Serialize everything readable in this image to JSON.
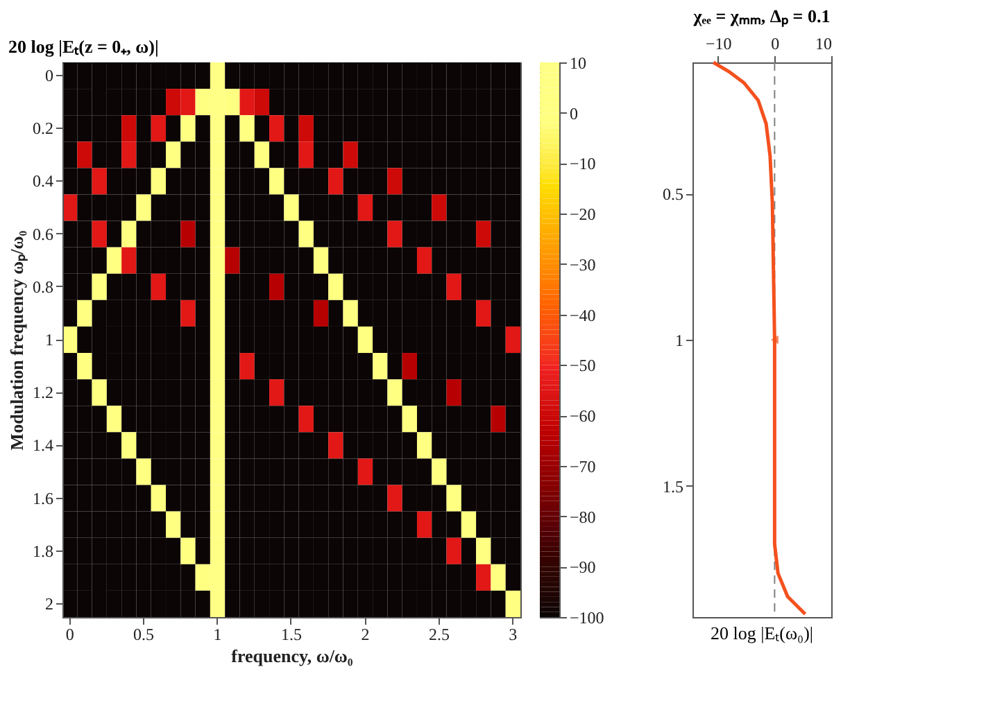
{
  "chart_data": [
    {
      "type": "heatmap",
      "title": "20 log |Eₜ(z = 0₊, ω)|",
      "xlabel": "frequency, ω/ω₀",
      "ylabel": "Modulation frequency ωₚ/ω₀",
      "categories": [
        "0",
        null,
        null,
        null,
        null,
        "0.5",
        null,
        null,
        null,
        null,
        "1",
        null,
        null,
        null,
        null,
        "1.5",
        null,
        null,
        null,
        null,
        "2",
        null,
        null,
        null,
        null,
        "2.5",
        null,
        null,
        null,
        null,
        "3"
      ],
      "y_categories": [
        "0",
        null,
        "0.2",
        null,
        "0.4",
        null,
        "0.6",
        null,
        "0.8",
        null,
        "1",
        null,
        "1.2",
        null,
        "1.4",
        null,
        "1.6",
        null,
        "1.8",
        null,
        "2"
      ],
      "cells": [
        [
          -100,
          -100,
          -100,
          -100,
          -100,
          -100,
          -100,
          -100,
          -100,
          -100,
          10,
          -100,
          -100,
          -100,
          -100,
          -100,
          -100,
          -100,
          -100,
          -100,
          -100,
          -100,
          -100,
          -100,
          -100,
          -100,
          -100,
          -100,
          -100,
          -100,
          -100
        ],
        [
          -100,
          -100,
          -100,
          -100,
          -100,
          -100,
          -100,
          -60,
          -55,
          0,
          10,
          0,
          -55,
          -60,
          -100,
          -100,
          -100,
          -100,
          -100,
          -100,
          -100,
          -100,
          -100,
          -100,
          -100,
          -100,
          -100,
          -100,
          -100,
          -100,
          -100
        ],
        [
          -100,
          -100,
          -100,
          -100,
          -60,
          -100,
          -55,
          -100,
          0,
          -100,
          10,
          -100,
          0,
          -100,
          -55,
          -100,
          -60,
          -100,
          -100,
          -100,
          -100,
          -100,
          -100,
          -100,
          -100,
          -100,
          -100,
          -100,
          -100,
          -100,
          -100
        ],
        [
          -100,
          -60,
          -100,
          -100,
          -55,
          -100,
          -100,
          0,
          -100,
          -100,
          10,
          -100,
          -100,
          0,
          -100,
          -100,
          -55,
          -100,
          -100,
          -60,
          -100,
          -100,
          -100,
          -100,
          -100,
          -100,
          -100,
          -100,
          -100,
          -100,
          -100
        ],
        [
          -100,
          -100,
          -55,
          -100,
          -100,
          -100,
          0,
          -100,
          -100,
          -100,
          10,
          -100,
          -100,
          -100,
          0,
          -100,
          -100,
          -100,
          -55,
          -100,
          -100,
          -100,
          -60,
          -100,
          -100,
          -100,
          -100,
          -100,
          -100,
          -100,
          -100
        ],
        [
          -55,
          -100,
          -100,
          -100,
          -100,
          0,
          -100,
          -100,
          -100,
          -100,
          10,
          -100,
          -100,
          -100,
          -100,
          0,
          -100,
          -100,
          -100,
          -100,
          -55,
          -100,
          -100,
          -100,
          -100,
          -60,
          -100,
          -100,
          -100,
          -100,
          -100
        ],
        [
          -100,
          -100,
          -55,
          -100,
          0,
          -100,
          -100,
          -100,
          -65,
          -100,
          10,
          -100,
          -100,
          -100,
          -100,
          -100,
          0,
          -100,
          -100,
          -100,
          -100,
          -100,
          -55,
          -100,
          -100,
          -100,
          -100,
          -100,
          -60,
          -100,
          -100
        ],
        [
          -100,
          -100,
          -100,
          0,
          -55,
          -100,
          -100,
          -100,
          -100,
          -100,
          10,
          -65,
          -100,
          -100,
          -100,
          -100,
          -100,
          0,
          -100,
          -100,
          -100,
          -100,
          -100,
          -100,
          -55,
          -100,
          -100,
          -100,
          -100,
          -100,
          -100
        ],
        [
          -100,
          -100,
          0,
          -100,
          -100,
          -100,
          -55,
          -100,
          -100,
          -100,
          10,
          -100,
          -100,
          -100,
          -65,
          -100,
          -100,
          -100,
          0,
          -100,
          -100,
          -100,
          -100,
          -100,
          -100,
          -100,
          -55,
          -100,
          -100,
          -100,
          -100
        ],
        [
          -100,
          0,
          -100,
          -100,
          -100,
          -100,
          -100,
          -100,
          -55,
          -100,
          10,
          -100,
          -100,
          -100,
          -100,
          -100,
          -100,
          -65,
          -100,
          0,
          -100,
          -100,
          -100,
          -100,
          -100,
          -100,
          -100,
          -100,
          -55,
          -100,
          -100
        ],
        [
          0,
          -100,
          -100,
          -100,
          -100,
          -100,
          -100,
          -100,
          -100,
          -100,
          10,
          -100,
          -100,
          -100,
          -100,
          -100,
          -100,
          -100,
          -100,
          -100,
          0,
          -100,
          -100,
          -100,
          -100,
          -100,
          -100,
          -100,
          -100,
          -100,
          -55
        ],
        [
          -100,
          0,
          -100,
          -100,
          -100,
          -100,
          -100,
          -100,
          -100,
          -100,
          10,
          -100,
          -55,
          -100,
          -100,
          -100,
          -100,
          -100,
          -100,
          -100,
          -100,
          0,
          -100,
          -65,
          -100,
          -100,
          -100,
          -100,
          -100,
          -100,
          -100
        ],
        [
          -100,
          -100,
          0,
          -100,
          -100,
          -100,
          -100,
          -100,
          -100,
          -100,
          10,
          -100,
          -100,
          -100,
          -55,
          -100,
          -100,
          -100,
          -100,
          -100,
          -100,
          -100,
          0,
          -100,
          -100,
          -100,
          -65,
          -100,
          -100,
          -100,
          -100
        ],
        [
          -100,
          -100,
          -100,
          0,
          -100,
          -100,
          -100,
          -100,
          -100,
          -100,
          10,
          -100,
          -100,
          -100,
          -100,
          -100,
          -55,
          -100,
          -100,
          -100,
          -100,
          -100,
          -100,
          0,
          -100,
          -100,
          -100,
          -100,
          -100,
          -65,
          -100
        ],
        [
          -100,
          -100,
          -100,
          -100,
          0,
          -100,
          -100,
          -100,
          -100,
          -100,
          10,
          -100,
          -100,
          -100,
          -100,
          -100,
          -100,
          -100,
          -55,
          -100,
          -100,
          -100,
          -100,
          -100,
          0,
          -100,
          -100,
          -100,
          -100,
          -100,
          -100
        ],
        [
          -100,
          -100,
          -100,
          -100,
          -100,
          0,
          -100,
          -100,
          -100,
          -100,
          10,
          -100,
          -100,
          -100,
          -100,
          -100,
          -100,
          -100,
          -100,
          -100,
          -55,
          -100,
          -100,
          -100,
          -100,
          0,
          -100,
          -100,
          -100,
          -100,
          -100
        ],
        [
          -100,
          -100,
          -100,
          -100,
          -100,
          -100,
          0,
          -100,
          -100,
          -100,
          10,
          -100,
          -100,
          -100,
          -100,
          -100,
          -100,
          -100,
          -100,
          -100,
          -100,
          -100,
          -55,
          -100,
          -100,
          -100,
          0,
          -100,
          -100,
          -100,
          -100
        ],
        [
          -100,
          -100,
          -100,
          -100,
          -100,
          -100,
          -100,
          0,
          -100,
          -100,
          10,
          -100,
          -100,
          -100,
          -100,
          -100,
          -100,
          -100,
          -100,
          -100,
          -100,
          -100,
          -100,
          -100,
          -55,
          -100,
          -100,
          0,
          -100,
          -100,
          -100
        ],
        [
          -100,
          -100,
          -100,
          -100,
          -100,
          -100,
          -100,
          -100,
          0,
          -100,
          10,
          -100,
          -100,
          -100,
          -100,
          -100,
          -100,
          -100,
          -100,
          -100,
          -100,
          -100,
          -100,
          -100,
          -100,
          -100,
          -55,
          -100,
          0,
          -100,
          -100
        ],
        [
          -100,
          -100,
          -100,
          -100,
          -100,
          -100,
          -100,
          -100,
          -100,
          0,
          10,
          -100,
          -100,
          -100,
          -100,
          -100,
          -100,
          -100,
          -100,
          -100,
          -100,
          -100,
          -100,
          -100,
          -100,
          -100,
          -100,
          -100,
          -55,
          0,
          -100
        ],
        [
          -100,
          -100,
          -100,
          -100,
          -100,
          -100,
          -100,
          -100,
          -100,
          -100,
          10,
          -100,
          -100,
          -100,
          -100,
          -100,
          -100,
          -100,
          -100,
          -100,
          -100,
          -100,
          -100,
          -100,
          -100,
          -100,
          -100,
          -100,
          -100,
          -100,
          0
        ]
      ],
      "clim": [
        -100,
        10
      ],
      "cticks": [
        10,
        0,
        -10,
        -20,
        -30,
        -40,
        -50,
        -60,
        -70,
        -80,
        -90,
        -100
      ]
    },
    {
      "type": "line",
      "xlabel": "20 log |Eₜ(ω₀)|",
      "annotations": [
        "χₑₑ = χₘₘ,  Δₚ = 0.1"
      ],
      "xlim": [
        -14.5,
        10
      ],
      "xticks": [
        -10,
        0,
        10
      ],
      "ylim": [
        1.95,
        0.05
      ],
      "yticks": [
        0.5,
        1,
        1.5
      ],
      "grid": false,
      "ref_lines": [
        {
          "axis": "x",
          "value": 0,
          "color": "#808080",
          "line_style": "dashed"
        }
      ],
      "series": [
        {
          "color": "#f4511e",
          "x": [
            -10.8,
            -8.1,
            -5.4,
            -2.9,
            -1.5,
            -0.8,
            -0.4,
            0,
            0,
            0.6,
            2.3,
            5.4
          ],
          "values": [
            0.05,
            0.081,
            0.12,
            0.18,
            0.26,
            0.37,
            0.53,
            1.0,
            1.7,
            1.8,
            1.88,
            1.94
          ]
        },
        {
          "type": "scatter",
          "color": "#f4511e",
          "marker": "triangle",
          "x": [
            0
          ],
          "values": [
            1
          ]
        }
      ]
    }
  ]
}
